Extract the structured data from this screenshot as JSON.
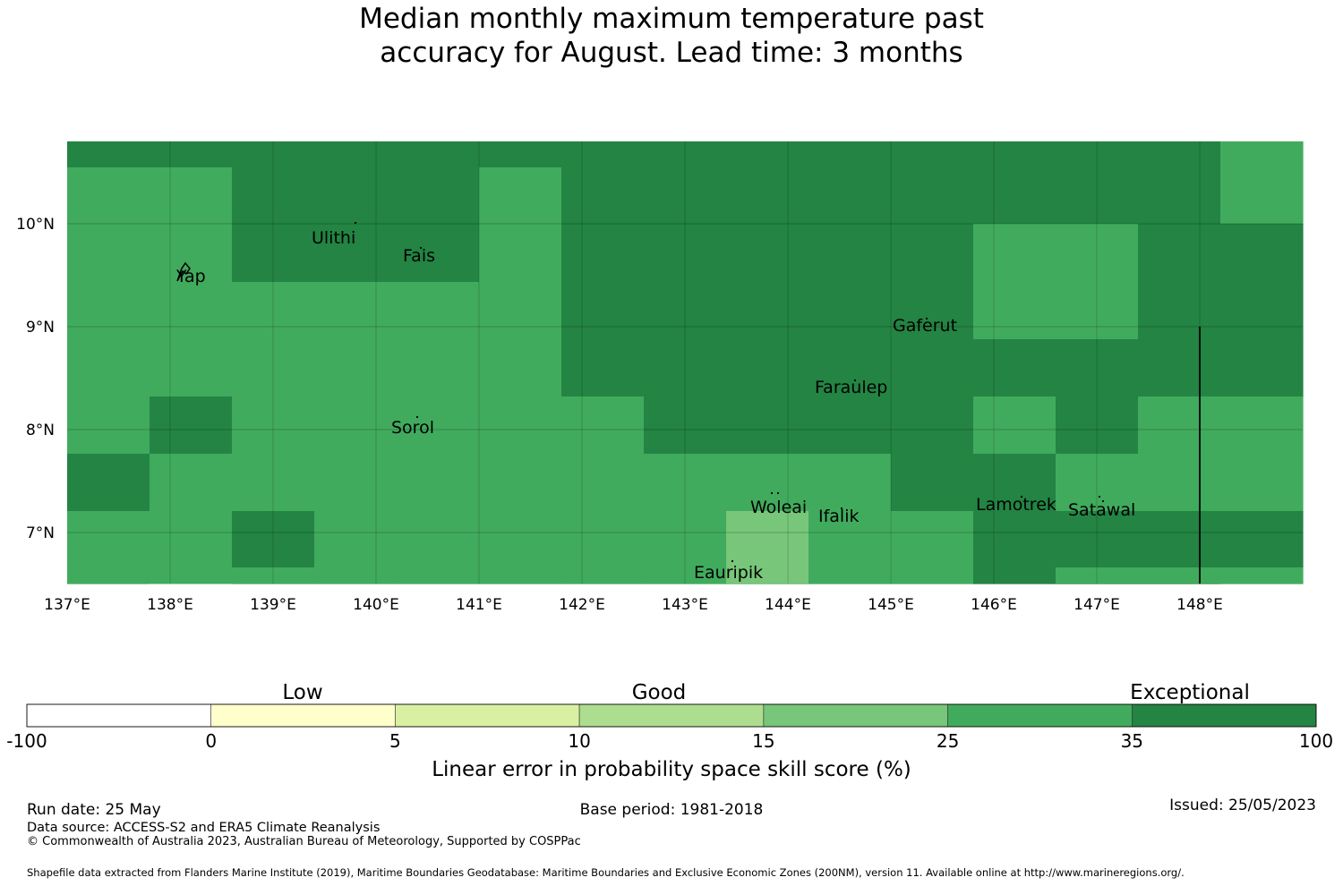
{
  "title": {
    "line1": "Median monthly maximum temperature past",
    "line2": "accuracy for August. Lead time: 3 months"
  },
  "map": {
    "lon_range": [
      137,
      149
    ],
    "lat_range": [
      6.5,
      10.8
    ],
    "x_ticks": [
      "137°E",
      "138°E",
      "139°E",
      "140°E",
      "141°E",
      "142°E",
      "143°E",
      "144°E",
      "145°E",
      "146°E",
      "147°E",
      "148°E"
    ],
    "y_ticks": [
      "10°N",
      "9°N",
      "8°N",
      "7°N"
    ],
    "category_colors": {
      "A": "#78c679",
      "B": "#41ab5d",
      "C": "#238443"
    },
    "grid_rows": [
      "CCCCCCCCCCCCCCB",
      "BBCCCBCCCCCCCCB",
      "BBCCCBCCCCCBBCC",
      "BBBBBBCCCCCBBCC",
      "BBBBBBCCCCCCCCC",
      "BCBBBBBCCCCBCBB",
      "CBBBBBBBBBCCBBB",
      "BBCBBBBBABBCCCC",
      "BBBBBBBBABBCBBB",
      "BABBBBBBBBBCCCB"
    ],
    "places": [
      {
        "name": "Ulithi",
        "lon": 139.8,
        "lat": 10.0
      },
      {
        "name": "Fais",
        "lon": 140.5,
        "lat": 9.75
      },
      {
        "name": "Yap",
        "lon": 138.15,
        "lat": 9.5
      },
      {
        "name": "Gaferut",
        "lon": 145.35,
        "lat": 9.1
      },
      {
        "name": "Faraulep",
        "lon": 144.5,
        "lat": 8.55
      },
      {
        "name": "Sorol",
        "lon": 140.4,
        "lat": 8.1
      },
      {
        "name": "Woleai",
        "lon": 143.9,
        "lat": 7.4
      },
      {
        "name": "Ifalik",
        "lon": 144.45,
        "lat": 7.25
      },
      {
        "name": "Lamotrek",
        "lon": 146.35,
        "lat": 7.45
      },
      {
        "name": "Satawal",
        "lon": 147.05,
        "lat": 7.35
      },
      {
        "name": "Eauripik",
        "lon": 143.05,
        "lat": 6.7
      }
    ]
  },
  "colorbar": {
    "boundaries": [
      "-100",
      "0",
      "5",
      "10",
      "15",
      "25",
      "35",
      "100"
    ],
    "colors": [
      "#ffffff",
      "#ffffcc",
      "#d9f0a3",
      "#addd8e",
      "#78c679",
      "#41ab5d",
      "#238443"
    ],
    "categories": [
      "Low",
      "Good",
      "Exceptional"
    ],
    "label": "Linear error in probability space skill score (%)"
  },
  "footer": {
    "run_date": "Run date: 25 May",
    "base_period": "Base period: 1981-2018",
    "issued": "Issued: 25/05/2023",
    "data_source": "Data source: ACCESS-S2 and ERA5 Climate Reanalysis",
    "copyright": "© Commonwealth of Australia 2023, Australian Bureau of Meteorology, Supported by COSPPac",
    "shapefile": "Shapefile data extracted from Flanders Marine Institute (2019), Maritime Boundaries Geodatabase: Maritime Boundaries and Exclusive Economic Zones (200NM), version 11. Available online at http://www.marineregions.org/."
  }
}
